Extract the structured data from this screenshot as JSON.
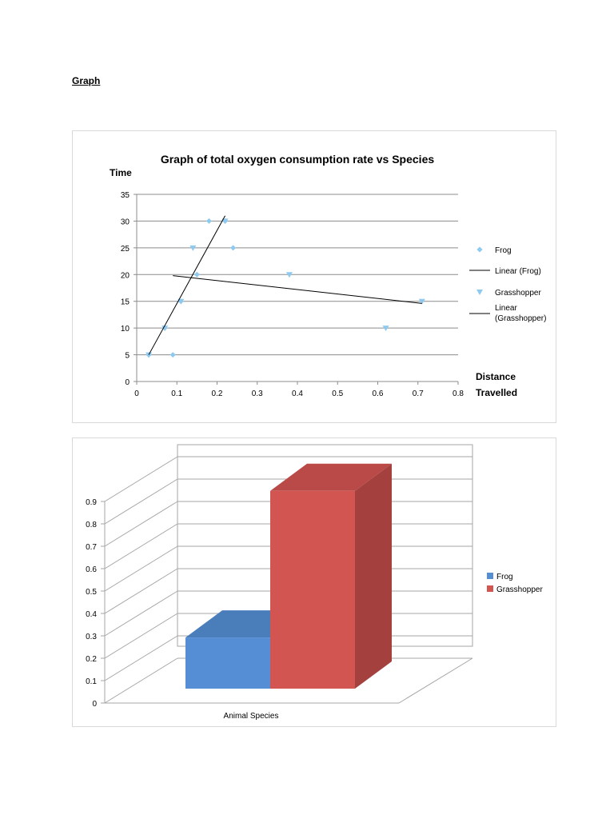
{
  "page": {
    "heading": "Graph"
  },
  "chart_data": [
    {
      "type": "scatter",
      "title": "Graph of total oxygen consumption rate vs Species",
      "ylabel": "Time",
      "xlabel_lines": [
        "Distance",
        "Travelled"
      ],
      "xlim": [
        0,
        0.8
      ],
      "ylim": [
        0,
        35
      ],
      "xticks": [
        0,
        0.1,
        0.2,
        0.3,
        0.4,
        0.5,
        0.6,
        0.7,
        0.8
      ],
      "xtick_labels": [
        "0",
        "0.1",
        "0.2",
        "0.3",
        "0.4",
        "0.5",
        "0.6",
        "0.7",
        "0.8"
      ],
      "yticks": [
        0,
        5,
        10,
        15,
        20,
        25,
        30,
        35
      ],
      "ytick_labels": [
        "0",
        "5",
        "10",
        "15",
        "20",
        "25",
        "30",
        "35"
      ],
      "grid": "horizontal",
      "legend_position": "right",
      "series": [
        {
          "name": "Frog",
          "marker": "diamond",
          "color": "#8ec9f0",
          "points": [
            [
              0.03,
              5
            ],
            [
              0.09,
              5
            ],
            [
              0.07,
              10
            ],
            [
              0.11,
              15
            ],
            [
              0.15,
              20
            ],
            [
              0.24,
              25
            ],
            [
              0.18,
              30
            ],
            [
              0.22,
              30
            ]
          ]
        },
        {
          "name": "Grasshopper",
          "marker": "triangle-down",
          "color": "#8ec9f0",
          "points": [
            [
              0.03,
              5
            ],
            [
              0.07,
              10
            ],
            [
              0.11,
              15
            ],
            [
              0.14,
              25
            ],
            [
              0.22,
              30
            ],
            [
              0.38,
              20
            ],
            [
              0.62,
              10
            ],
            [
              0.71,
              15
            ]
          ]
        }
      ],
      "trendlines": [
        {
          "name": "Linear (Frog)",
          "color": "#000000",
          "x": [
            0.03,
            0.22
          ],
          "y": [
            5,
            31
          ]
        },
        {
          "name": "Linear (Grasshopper)",
          "color": "#000000",
          "x": [
            0.09,
            0.71
          ],
          "y": [
            19.8,
            14.6
          ]
        }
      ],
      "legend": [
        {
          "label": "Frog",
          "symbol": "diamond"
        },
        {
          "label": "Linear (Frog)",
          "symbol": "line"
        },
        {
          "label": "Grasshopper",
          "symbol": "triangle-down"
        },
        {
          "label": "Linear (Grasshopper)",
          "symbol": "line",
          "lines": [
            "Linear",
            "(Grasshopper)"
          ]
        }
      ]
    },
    {
      "type": "bar",
      "style": "3d-clustered-column",
      "categories": [
        "Animal Species"
      ],
      "xlabel": "Animal Species",
      "ylim": [
        0,
        0.9
      ],
      "yticks": [
        0,
        0.1,
        0.2,
        0.3,
        0.4,
        0.5,
        0.6,
        0.7,
        0.8,
        0.9
      ],
      "ytick_labels": [
        "0",
        "0.1",
        "0.2",
        "0.3",
        "0.4",
        "0.5",
        "0.6",
        "0.7",
        "0.8",
        "0.9"
      ],
      "legend_position": "right",
      "series": [
        {
          "name": "Frog",
          "values": [
            0.23
          ],
          "color": "#558ed5",
          "top_color": "#4a7ebb",
          "side_color": "#3f6ea8"
        },
        {
          "name": "Grasshopper",
          "values": [
            0.89
          ],
          "color": "#d35552",
          "top_color": "#b94a47",
          "side_color": "#a4403d"
        }
      ]
    }
  ]
}
